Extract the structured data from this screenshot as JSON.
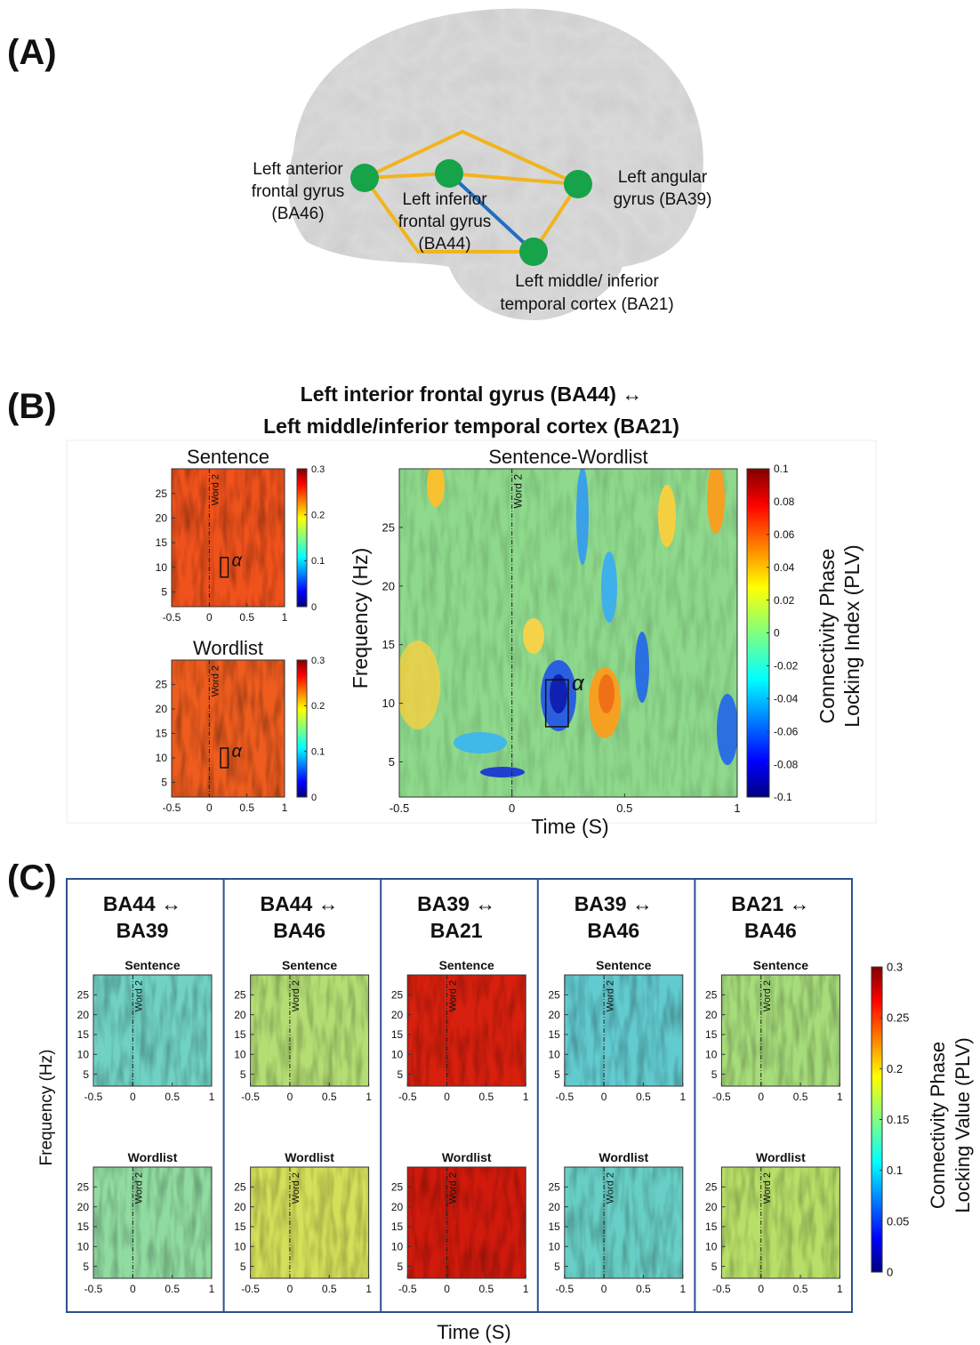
{
  "panel_a": {
    "label": "(A)",
    "regions": [
      {
        "lines": [
          "Left anterior",
          "frontal gyrus",
          "(BA46)"
        ]
      },
      {
        "lines": [
          "Left inferior",
          "frontal gyrus",
          "(BA44)"
        ]
      },
      {
        "lines": [
          "Left angular",
          "gyrus  (BA39)"
        ]
      },
      {
        "lines": [
          "Left middle/  inferior",
          "temporal cortex (BA21)"
        ]
      }
    ]
  },
  "panel_b": {
    "label": "(B)",
    "title": [
      "Left interior frontal gyrus (BA44) ↔",
      "Left middle/inferior temporal cortex  (BA21)"
    ],
    "xlim": [
      -0.5,
      1
    ],
    "ylim": [
      2,
      30
    ],
    "xticks": [
      -0.5,
      0,
      0.5,
      1
    ],
    "yticks": [
      5,
      10,
      15,
      20,
      25
    ],
    "marker_x": 0,
    "marker_label": "Word 2",
    "alpha_label": "α",
    "alpha_window": {
      "time": [
        0.15,
        0.25
      ],
      "freq": [
        8,
        12
      ]
    },
    "conditions": [
      {
        "title": "Sentence",
        "color": "#f0521c",
        "clim": [
          0,
          0.3
        ],
        "cticks": [
          0,
          0.1,
          0.2,
          0.3
        ]
      },
      {
        "title": "Wordlist",
        "color": "#ee5c1e",
        "clim": [
          0,
          0.3
        ],
        "cticks": [
          0,
          0.1,
          0.2,
          0.3
        ]
      }
    ],
    "contrast": {
      "title": "Sentence-Wordlist",
      "color": "#8ed98c",
      "clim": [
        -0.1,
        0.1
      ],
      "cticks": [
        -0.1,
        -0.08,
        -0.06,
        -0.04,
        -0.02,
        0,
        0.02,
        0.04,
        0.06,
        0.08,
        0.1
      ],
      "xlabel": "Time (S)",
      "ylabel": "Frequency (Hz)",
      "colorbar_label": [
        "Connectivity Phase",
        "Locking Index (PLV)"
      ]
    }
  },
  "panel_c": {
    "label": "(C)",
    "xlim": [
      -0.5,
      1
    ],
    "ylim": [
      2,
      30
    ],
    "xticks": [
      -0.5,
      0,
      0.5,
      1
    ],
    "yticks": [
      5,
      10,
      15,
      20,
      25
    ],
    "marker_x": 0,
    "marker_label": "Word 2",
    "conditions": [
      "Sentence",
      "Wordlist"
    ],
    "pairs": [
      {
        "title": [
          "BA44 ↔",
          "BA39"
        ],
        "colors": [
          "#70d2c4",
          "#90dba0"
        ]
      },
      {
        "title": [
          "BA44 ↔",
          "BA46"
        ],
        "colors": [
          "#b4de74",
          "#d4e05a"
        ]
      },
      {
        "title": [
          "BA39 ↔",
          "BA21"
        ],
        "colors": [
          "#d8200e",
          "#cf1a0c"
        ]
      },
      {
        "title": [
          "BA39 ↔",
          "BA46"
        ],
        "colors": [
          "#62cbd0",
          "#68cfc6"
        ]
      },
      {
        "title": [
          "BA21 ↔",
          "BA46"
        ],
        "colors": [
          "#a6dc7a",
          "#b8df68"
        ]
      }
    ],
    "clim": [
      0,
      0.3
    ],
    "cticks": [
      0,
      0.05,
      0.1,
      0.15,
      0.2,
      0.25,
      0.3
    ],
    "colorbar_label": [
      "Connectivity Phase",
      "Locking Value (PLV)"
    ],
    "xlabel": "Time (S)",
    "ylabel": "Frequency (Hz)"
  }
}
